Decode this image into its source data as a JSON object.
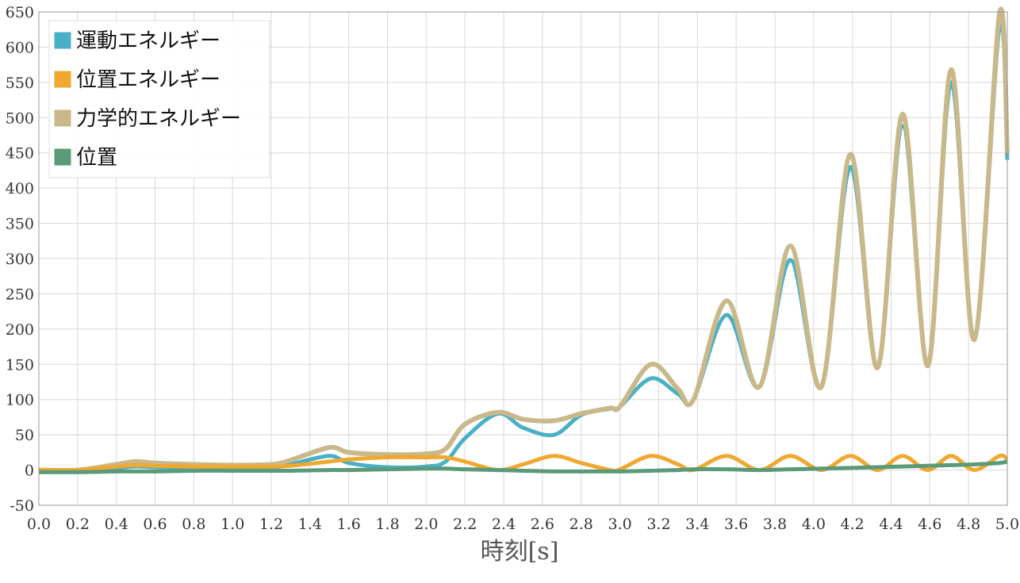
{
  "chart_data": {
    "type": "line",
    "x_label": "時刻[s]",
    "x": [
      0,
      0.2,
      0.4,
      0.5,
      0.6,
      0.8,
      1.0,
      1.2,
      1.3,
      1.5,
      1.6,
      1.8,
      2.0,
      2.1,
      2.2,
      2.37,
      2.5,
      2.66,
      2.8,
      2.95,
      3.0,
      3.16,
      3.3,
      3.38,
      3.55,
      3.72,
      3.88,
      4.04,
      4.19,
      4.33,
      4.46,
      4.59,
      4.71,
      4.83,
      4.96,
      5.0
    ],
    "series": [
      {
        "name": "運動エネルギー",
        "color": "#4ab0c6",
        "values": [
          0,
          0,
          3,
          5,
          4,
          3,
          2,
          3,
          8,
          20,
          10,
          4,
          5,
          12,
          45,
          80,
          60,
          50,
          78,
          87,
          90,
          130,
          108,
          100,
          220,
          118,
          298,
          118,
          430,
          145,
          488,
          148,
          550,
          185,
          630,
          440
        ]
      },
      {
        "name": "位置エネルギー",
        "color": "#f0a830",
        "values": [
          0,
          0,
          5,
          7,
          6,
          5,
          5,
          5,
          6,
          12,
          15,
          18,
          18,
          18,
          12,
          0,
          8,
          20,
          10,
          0,
          1,
          20,
          8,
          0,
          20,
          0,
          20,
          0,
          20,
          0,
          20,
          0,
          20,
          0,
          20,
          15
        ]
      },
      {
        "name": "力学的エネルギー",
        "color": "#c8b88a",
        "values": [
          0,
          0,
          8,
          12,
          10,
          8,
          7,
          8,
          14,
          32,
          25,
          22,
          23,
          30,
          65,
          82,
          72,
          70,
          80,
          88,
          90,
          150,
          115,
          100,
          240,
          118,
          318,
          118,
          448,
          145,
          505,
          148,
          568,
          185,
          648,
          450
        ]
      },
      {
        "name": "位置",
        "color": "#5a9a78",
        "values": [
          -3,
          -3,
          -2,
          -2,
          -2,
          -1,
          -1,
          -1,
          -1,
          0,
          0,
          1,
          2,
          2,
          1,
          0,
          -1,
          -2,
          -2,
          -2,
          -2,
          -1,
          0,
          1,
          1,
          0,
          1,
          2,
          3,
          4,
          5,
          6,
          7,
          8,
          10,
          12
        ]
      }
    ],
    "xlim": [
      0,
      5
    ],
    "ylim": [
      -50,
      650
    ],
    "xticks": [
      {
        "value": 0,
        "label": "0.0"
      },
      {
        "value": 0.2,
        "label": "0.2"
      },
      {
        "value": 0.4,
        "label": "0.4"
      },
      {
        "value": 0.6,
        "label": "0.6"
      },
      {
        "value": 0.8,
        "label": "0.8"
      },
      {
        "value": 1,
        "label": "1.0"
      },
      {
        "value": 1.2,
        "label": "1.2"
      },
      {
        "value": 1.4,
        "label": "1.4"
      },
      {
        "value": 1.6,
        "label": "1.6"
      },
      {
        "value": 1.8,
        "label": "1.8"
      },
      {
        "value": 2,
        "label": "2.0"
      },
      {
        "value": 2.2,
        "label": "2.2"
      },
      {
        "value": 2.4,
        "label": "2.4"
      },
      {
        "value": 2.6,
        "label": "2.6"
      },
      {
        "value": 2.8,
        "label": "2.8"
      },
      {
        "value": 3,
        "label": "3.0"
      },
      {
        "value": 3.2,
        "label": "3.2"
      },
      {
        "value": 3.4,
        "label": "3.4"
      },
      {
        "value": 3.6,
        "label": "3.6"
      },
      {
        "value": 3.8,
        "label": "3.8"
      },
      {
        "value": 4,
        "label": "4.0"
      },
      {
        "value": 4.2,
        "label": "4.2"
      },
      {
        "value": 4.4,
        "label": "4.4"
      },
      {
        "value": 4.6,
        "label": "4.6"
      },
      {
        "value": 4.8,
        "label": "4.8"
      },
      {
        "value": 5,
        "label": "5.0"
      }
    ],
    "yticks": [
      -50,
      0,
      50,
      100,
      150,
      200,
      250,
      300,
      350,
      400,
      450,
      500,
      550,
      600,
      650
    ],
    "grid": true
  }
}
